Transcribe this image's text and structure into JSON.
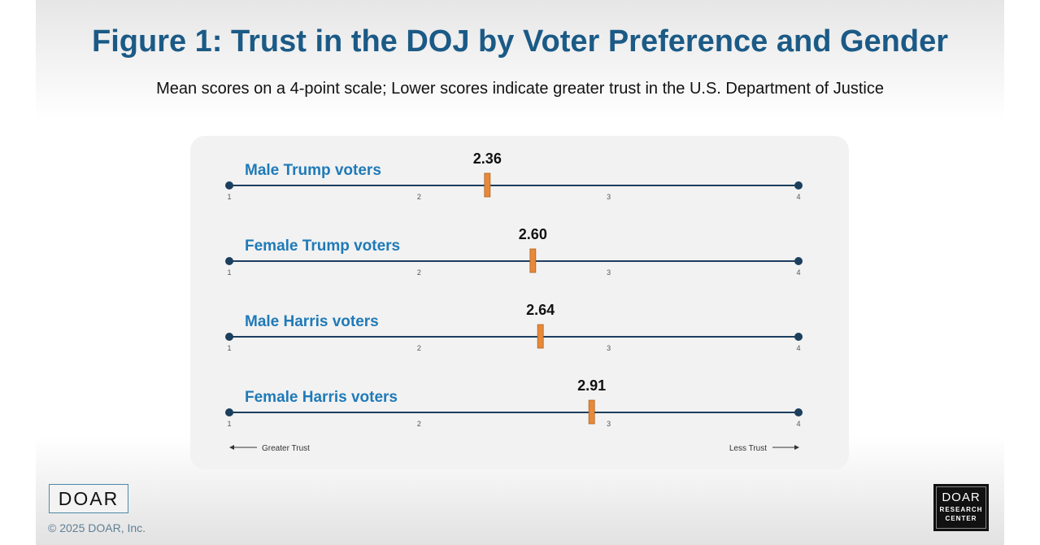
{
  "chart_data": {
    "type": "dot-scale",
    "title": "Figure 1: Trust in the DOJ by Voter Preference and Gender",
    "subtitle": "Mean scores on a 4-point scale; Lower scores indicate greater trust in the U.S. Department of Justice",
    "xlim": [
      1,
      4
    ],
    "ticks": [
      "1",
      "2",
      "3",
      "4"
    ],
    "categories": [
      "Male Trump voters",
      "Female Trump voters",
      "Male Harris voters",
      "Female Harris voters"
    ],
    "values": [
      2.36,
      2.6,
      2.64,
      2.91
    ],
    "value_labels": [
      "2.36",
      "2.60",
      "2.64",
      "2.91"
    ],
    "left_annotation": "Greater Trust",
    "right_annotation": "Less Trust",
    "colors": {
      "title": "#1b5a86",
      "label": "#1f7ab8",
      "axis": "#1c3f5e",
      "marker": "#e8893a"
    }
  },
  "footer": {
    "logo_left": "DOAR",
    "copyright": "© 2025 DOAR, Inc.",
    "logo_right": [
      "DOAR",
      "RESEARCH",
      "CENTER"
    ]
  }
}
